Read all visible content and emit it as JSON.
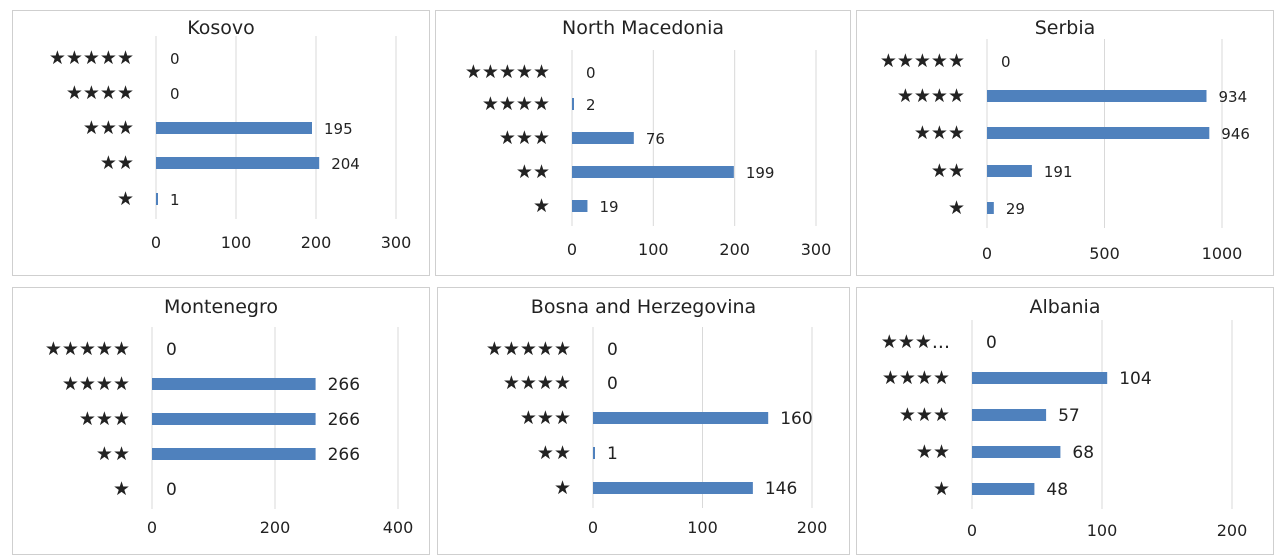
{
  "chart_data": [
    {
      "type": "bar",
      "title": "Kosovo",
      "categories": [
        "★★★★★",
        "★★★★",
        "★★★",
        "★★",
        "★"
      ],
      "values": [
        0,
        0,
        195,
        204,
        1
      ],
      "xlim": [
        0,
        300
      ],
      "xticks": [
        0,
        100,
        200,
        300
      ],
      "grid": true
    },
    {
      "type": "bar",
      "title": "North Macedonia",
      "categories": [
        "★★★★★",
        "★★★★",
        "★★★",
        "★★",
        "★"
      ],
      "values": [
        0,
        2,
        76,
        199,
        19
      ],
      "xlim": [
        0,
        300
      ],
      "xticks": [
        0,
        100,
        200,
        300
      ],
      "grid": true
    },
    {
      "type": "bar",
      "title": "Serbia",
      "categories": [
        "★★★★★",
        "★★★★",
        "★★★",
        "★★",
        "★"
      ],
      "values": [
        0,
        934,
        946,
        191,
        29
      ],
      "xlim": [
        0,
        1000
      ],
      "xticks": [
        0,
        500,
        1000
      ],
      "grid": true
    },
    {
      "type": "bar",
      "title": "Montenegro",
      "categories": [
        "★★★★★",
        "★★★★",
        "★★★",
        "★★",
        "★"
      ],
      "values": [
        0,
        266,
        266,
        266,
        0
      ],
      "xlim": [
        0,
        400
      ],
      "xticks": [
        0,
        200,
        400
      ],
      "grid": true
    },
    {
      "type": "bar",
      "title": "Bosna and Herzegovina",
      "categories": [
        "★★★★★",
        "★★★★",
        "★★★",
        "★★",
        "★"
      ],
      "values": [
        0,
        0,
        160,
        1,
        146
      ],
      "xlim": [
        0,
        200
      ],
      "xticks": [
        0,
        100,
        200
      ],
      "grid": true
    },
    {
      "type": "bar",
      "title": "Albania",
      "categories": [
        "★★★...",
        "★★★★",
        "★★★",
        "★★",
        "★"
      ],
      "values": [
        0,
        104,
        57,
        68,
        48
      ],
      "xlim": [
        0,
        200
      ],
      "xticks": [
        0,
        100,
        200
      ],
      "grid": true
    }
  ],
  "colors": {
    "bar": "#4f81bd",
    "grid": "#d9d9d9",
    "text": "#222222"
  }
}
